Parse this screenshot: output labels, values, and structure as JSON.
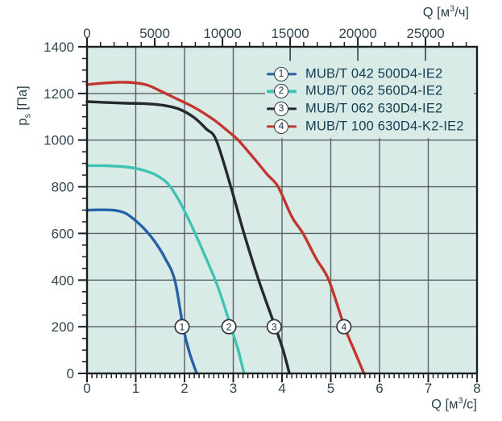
{
  "colors": {
    "plot_bg": "#d8ebe6",
    "grid": "#5a6062",
    "axis": "#1b1f22",
    "text": "#31444f",
    "marker_border": "#33383b",
    "marker_text": "#16303e"
  },
  "labels": {
    "top_axis_title": {
      "pre": "Q [м",
      "sup": "3",
      "post": "/ч]"
    },
    "bottom_axis_title": {
      "pre": "Q [м",
      "sup": "3",
      "post": "/с]"
    },
    "y_axis_title": {
      "main": "p",
      "sub": "s",
      "rest": " [Па]"
    }
  },
  "legend": {
    "items": [
      {
        "num": "1",
        "label": "MUB/T 042 500D4-IE2",
        "color": "#2762a7"
      },
      {
        "num": "2",
        "label": "MUB/T 062 560D4-IE2",
        "color": "#3fc3b3"
      },
      {
        "num": "3",
        "label": "MUB/T 062 630D4-IE2",
        "color": "#26292c"
      },
      {
        "num": "4",
        "label": "MUB/T 100 630D4-K2-IE2",
        "color": "#c2362f"
      }
    ]
  },
  "chart_data": {
    "type": "line",
    "title": "Fan performance curves: static pressure vs air flow",
    "x_axis_bottom": {
      "label": "Q [м³/с]",
      "min": 0,
      "max": 8,
      "major_ticks": [
        0,
        1,
        2,
        3,
        4,
        5,
        6,
        7,
        8
      ],
      "minor_step": 0.1
    },
    "x_axis_top": {
      "label": "Q [м³/ч]",
      "min": 0,
      "max": 28800,
      "major_ticks": [
        0,
        5000,
        10000,
        15000,
        20000,
        25000
      ],
      "minor_step": 1000,
      "inner_tick_marks": [
        15000,
        20000,
        25000
      ]
    },
    "y_axis": {
      "label": "ps [Па]",
      "min": 0,
      "max": 1400,
      "major_ticks": [
        0,
        200,
        400,
        600,
        800,
        1000,
        1200,
        1400
      ],
      "minor_step": 50
    },
    "grid": "major-both",
    "legend_position": "top-right-inside",
    "series": [
      {
        "id": 1,
        "name": "MUB/T 042 500D4-IE2",
        "color": "#2762a7",
        "points": [
          [
            0,
            700
          ],
          [
            0.3,
            701
          ],
          [
            0.6,
            698
          ],
          [
            0.8,
            685
          ],
          [
            1.0,
            654
          ],
          [
            1.2,
            614
          ],
          [
            1.4,
            562
          ],
          [
            1.6,
            494
          ],
          [
            1.8,
            400
          ],
          [
            1.97,
            200
          ],
          [
            2.1,
            90
          ],
          [
            2.25,
            0
          ]
        ]
      },
      {
        "id": 2,
        "name": "MUB/T 062 560D4-IE2",
        "color": "#3fc3b3",
        "points": [
          [
            0,
            890
          ],
          [
            0.4,
            890
          ],
          [
            0.8,
            885
          ],
          [
            1.1,
            874
          ],
          [
            1.4,
            852
          ],
          [
            1.65,
            815
          ],
          [
            1.85,
            755
          ],
          [
            2.05,
            675
          ],
          [
            2.25,
            585
          ],
          [
            2.45,
            490
          ],
          [
            2.65,
            390
          ],
          [
            2.8,
            300
          ],
          [
            2.95,
            200
          ],
          [
            3.1,
            100
          ],
          [
            3.22,
            0
          ]
        ]
      },
      {
        "id": 3,
        "name": "MUB/T 062 630D4-IE2",
        "color": "#26292c",
        "points": [
          [
            0,
            1165
          ],
          [
            0.4,
            1161
          ],
          [
            0.8,
            1158
          ],
          [
            1.2,
            1156
          ],
          [
            1.6,
            1148
          ],
          [
            1.9,
            1132
          ],
          [
            2.2,
            1096
          ],
          [
            2.45,
            1047
          ],
          [
            2.65,
            1000
          ],
          [
            2.95,
            800
          ],
          [
            3.22,
            600
          ],
          [
            3.52,
            400
          ],
          [
            3.86,
            200
          ],
          [
            4.03,
            95
          ],
          [
            4.15,
            0
          ]
        ]
      },
      {
        "id": 4,
        "name": "MUB/T 100 630D4-K2-IE2",
        "color": "#c2362f",
        "points": [
          [
            0,
            1238
          ],
          [
            0.4,
            1245
          ],
          [
            0.8,
            1248
          ],
          [
            1.2,
            1238
          ],
          [
            1.5,
            1211
          ],
          [
            1.8,
            1181
          ],
          [
            2.2,
            1140
          ],
          [
            2.6,
            1087
          ],
          [
            2.9,
            1037
          ],
          [
            3.1,
            1000
          ],
          [
            3.4,
            928
          ],
          [
            3.7,
            852
          ],
          [
            3.92,
            800
          ],
          [
            4.2,
            672
          ],
          [
            4.43,
            600
          ],
          [
            4.7,
            492
          ],
          [
            4.96,
            400
          ],
          [
            5.28,
            200
          ],
          [
            5.48,
            100
          ],
          [
            5.68,
            0
          ]
        ]
      }
    ],
    "curve_markers": [
      {
        "num": "1",
        "q": 1.95,
        "p": 200
      },
      {
        "num": "2",
        "q": 2.91,
        "p": 200
      },
      {
        "num": "3",
        "q": 3.84,
        "p": 200
      },
      {
        "num": "4",
        "q": 5.27,
        "p": 200
      }
    ]
  }
}
